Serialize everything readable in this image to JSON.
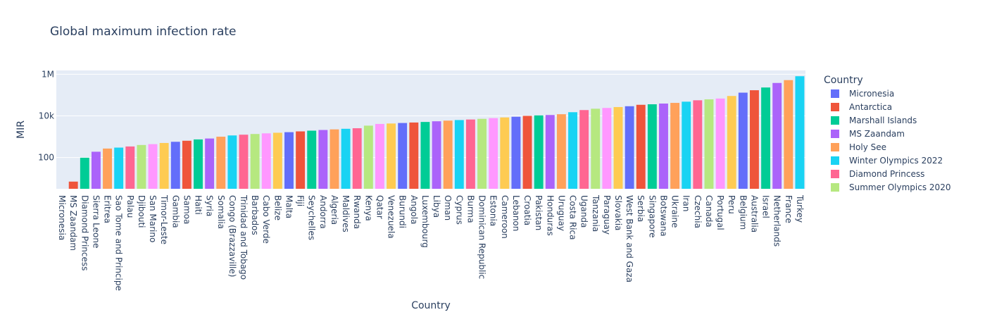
{
  "chart_data": {
    "type": "bar",
    "title": "Global maximum infection rate",
    "xlabel": "Country",
    "ylabel": "MIR",
    "yscale": "log",
    "ylim_log10": [
      0.5,
      6.18
    ],
    "yticks": [
      {
        "value": 100,
        "label": "100"
      },
      {
        "value": 10000,
        "label": "10k"
      },
      {
        "value": 1000000,
        "label": "1M"
      }
    ],
    "grid": true,
    "legend": {
      "title": "Country",
      "placement": "right",
      "entries": [
        {
          "name": "Micronesia",
          "color": "#636efa"
        },
        {
          "name": "Antarctica",
          "color": "#EF553B"
        },
        {
          "name": "Marshall Islands",
          "color": "#00cc96"
        },
        {
          "name": "MS Zaandam",
          "color": "#ab63fa"
        },
        {
          "name": "Holy See",
          "color": "#FFA15A"
        },
        {
          "name": "Winter Olympics 2022",
          "color": "#19d3f3"
        },
        {
          "name": "Diamond Princess",
          "color": "#FF6692"
        },
        {
          "name": "Summer Olympics 2020",
          "color": "#B6E880"
        }
      ]
    },
    "palette": [
      "#636efa",
      "#EF553B",
      "#00cc96",
      "#ab63fa",
      "#FFA15A",
      "#19d3f3",
      "#FF6692",
      "#B6E880",
      "#FF97FF",
      "#FECB52"
    ],
    "categories": [
      "Micronesia",
      "MS Zaandam",
      "Diamond Princess",
      "Sierra Leone",
      "Eritrea",
      "Sao Tome and Principe",
      "Palau",
      "Djibouti",
      "San Marino",
      "Timor-Leste",
      "Gambia",
      "Samoa",
      "Haiti",
      "Syria",
      "Somalia",
      "Congo (Brazzaville)",
      "Trinidad and Tobago",
      "Barbados",
      "Cabo Verde",
      "Belize",
      "Malta",
      "Fiji",
      "Seychelles",
      "Andorra",
      "Algeria",
      "Maldives",
      "Rwanda",
      "Kenya",
      "Qatar",
      "Venezuela",
      "Burundi",
      "Angola",
      "Luxembourg",
      "Libya",
      "Oman",
      "Cyprus",
      "Burma",
      "Dominican Republic",
      "Estonia",
      "Cameroon",
      "Lebanon",
      "Croatia",
      "Pakistan",
      "Honduras",
      "Uruguay",
      "Costa Rica",
      "Uganda",
      "Tanzania",
      "Paraguay",
      "Slovakia",
      "West Bank and Gaza",
      "Serbia",
      "Singapore",
      "Botswana",
      "Ukraine",
      "Iran",
      "Czechia",
      "Canada",
      "Portugal",
      "Peru",
      "Belgium",
      "Australia",
      "Israel",
      "Netherlands",
      "France",
      "Turkey"
    ],
    "values": [
      3,
      7,
      98,
      190,
      270,
      300,
      340,
      400,
      440,
      500,
      570,
      640,
      740,
      820,
      1000,
      1150,
      1250,
      1350,
      1450,
      1550,
      1650,
      1800,
      1950,
      2100,
      2250,
      2400,
      2550,
      3400,
      4100,
      4300,
      4550,
      4800,
      5100,
      5500,
      5900,
      6300,
      6700,
      7200,
      7800,
      8400,
      9100,
      10000,
      10500,
      11000,
      12000,
      15000,
      19000,
      22000,
      24000,
      26500,
      29000,
      34000,
      36000,
      39000,
      42000,
      48000,
      56000,
      62000,
      68000,
      90000,
      130000,
      170000,
      230000,
      380000,
      520000,
      800000
    ]
  }
}
